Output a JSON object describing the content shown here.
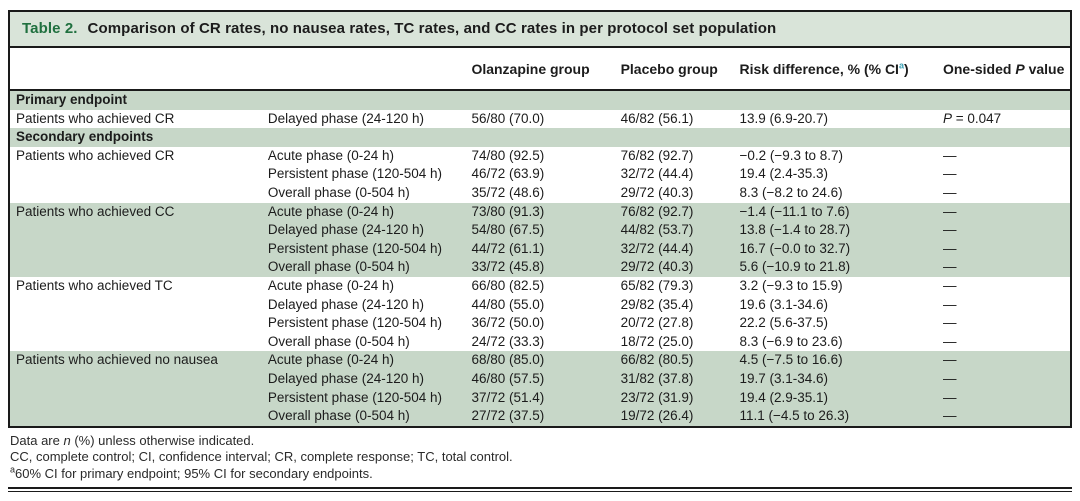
{
  "colors": {
    "title_bar_bg": "#d9e4d9",
    "band_bg": "#c7d7c8",
    "title_green": "#20703f",
    "superscript_teal": "#3ba0b5",
    "border_black": "#1a1a1a"
  },
  "table": {
    "title_label": "Table 2.",
    "title_text": "Comparison of CR rates, no nausea rates, TC rates, and CC rates in per protocol set population",
    "header": {
      "olanzapine": "Olanzapine group",
      "placebo": "Placebo group",
      "risk_prefix": "Risk difference, % (% CI",
      "risk_sup": "a",
      "risk_suffix": ")",
      "p_prefix": "One-sided ",
      "p_italic": "P",
      "p_suffix": " value"
    },
    "rows": [
      {
        "type": "section",
        "label": "Primary endpoint",
        "shaded": true
      },
      {
        "type": "data",
        "shaded": false,
        "endpoint": "Patients who achieved CR",
        "phase": "Delayed phase (24-120 h)",
        "olanzapine": "56/80 (70.0)",
        "placebo": "46/82 (56.1)",
        "risk_diff": "13.9 (6.9-20.7)",
        "p_value": "P = 0.047"
      },
      {
        "type": "section",
        "label": "Secondary endpoints",
        "shaded": true
      },
      {
        "type": "data",
        "shaded": false,
        "endpoint": "Patients who achieved CR",
        "phase": "Acute phase (0-24 h)",
        "olanzapine": "74/80 (92.5)",
        "placebo": "76/82 (92.7)",
        "risk_diff": "−0.2 (−9.3 to 8.7)",
        "p_value": "—"
      },
      {
        "type": "data",
        "shaded": false,
        "endpoint": "",
        "phase": "Persistent phase (120-504 h)",
        "olanzapine": "46/72 (63.9)",
        "placebo": "32/72 (44.4)",
        "risk_diff": "19.4 (2.4-35.3)",
        "p_value": "—"
      },
      {
        "type": "data",
        "shaded": false,
        "endpoint": "",
        "phase": "Overall phase (0-504 h)",
        "olanzapine": "35/72 (48.6)",
        "placebo": "29/72 (40.3)",
        "risk_diff": "8.3 (−8.2 to 24.6)",
        "p_value": "—"
      },
      {
        "type": "data",
        "shaded": true,
        "endpoint": "Patients who achieved CC",
        "phase": "Acute phase (0-24 h)",
        "olanzapine": "73/80 (91.3)",
        "placebo": "76/82 (92.7)",
        "risk_diff": "−1.4 (−11.1 to 7.6)",
        "p_value": "—"
      },
      {
        "type": "data",
        "shaded": true,
        "endpoint": "",
        "phase": "Delayed phase (24-120 h)",
        "olanzapine": "54/80 (67.5)",
        "placebo": "44/82 (53.7)",
        "risk_diff": "13.8 (−1.4 to 28.7)",
        "p_value": "—"
      },
      {
        "type": "data",
        "shaded": true,
        "endpoint": "",
        "phase": "Persistent phase (120-504 h)",
        "olanzapine": "44/72 (61.1)",
        "placebo": "32/72 (44.4)",
        "risk_diff": "16.7 (−0.0 to 32.7)",
        "p_value": "—"
      },
      {
        "type": "data",
        "shaded": true,
        "endpoint": "",
        "phase": "Overall phase (0-504 h)",
        "olanzapine": "33/72 (45.8)",
        "placebo": "29/72 (40.3)",
        "risk_diff": "5.6 (−10.9 to 21.8)",
        "p_value": "—"
      },
      {
        "type": "data",
        "shaded": false,
        "endpoint": "Patients who achieved TC",
        "phase": "Acute phase (0-24 h)",
        "olanzapine": "66/80 (82.5)",
        "placebo": "65/82 (79.3)",
        "risk_diff": "3.2 (−9.3 to 15.9)",
        "p_value": "—"
      },
      {
        "type": "data",
        "shaded": false,
        "endpoint": "",
        "phase": "Delayed phase (24-120 h)",
        "olanzapine": "44/80 (55.0)",
        "placebo": "29/82 (35.4)",
        "risk_diff": "19.6 (3.1-34.6)",
        "p_value": "—"
      },
      {
        "type": "data",
        "shaded": false,
        "endpoint": "",
        "phase": "Persistent phase (120-504 h)",
        "olanzapine": "36/72 (50.0)",
        "placebo": "20/72 (27.8)",
        "risk_diff": "22.2 (5.6-37.5)",
        "p_value": "—"
      },
      {
        "type": "data",
        "shaded": false,
        "endpoint": "",
        "phase": "Overall phase (0-504 h)",
        "olanzapine": "24/72 (33.3)",
        "placebo": "18/72 (25.0)",
        "risk_diff": "8.3 (−6.9 to 23.6)",
        "p_value": "—"
      },
      {
        "type": "data",
        "shaded": true,
        "endpoint": "Patients who achieved no nausea",
        "phase": "Acute phase (0-24 h)",
        "olanzapine": "68/80 (85.0)",
        "placebo": "66/82 (80.5)",
        "risk_diff": "4.5 (−7.5 to 16.6)",
        "p_value": "—"
      },
      {
        "type": "data",
        "shaded": true,
        "endpoint": "",
        "phase": "Delayed phase (24-120 h)",
        "olanzapine": "46/80 (57.5)",
        "placebo": "31/82 (37.8)",
        "risk_diff": "19.7 (3.1-34.6)",
        "p_value": "—"
      },
      {
        "type": "data",
        "shaded": true,
        "endpoint": "",
        "phase": "Persistent phase (120-504 h)",
        "olanzapine": "37/72 (51.4)",
        "placebo": "23/72 (31.9)",
        "risk_diff": "19.4 (2.9-35.1)",
        "p_value": "—"
      },
      {
        "type": "data",
        "shaded": true,
        "endpoint": "",
        "phase": "Overall phase (0-504 h)",
        "olanzapine": "27/72 (37.5)",
        "placebo": "19/72 (26.4)",
        "risk_diff": "11.1 (−4.5 to 26.3)",
        "p_value": "—"
      }
    ]
  },
  "footnotes": {
    "line1_prefix": "Data are ",
    "line1_italic": "n",
    "line1_suffix": " (%) unless otherwise indicated.",
    "line2": "CC, complete control; CI, confidence interval; CR, complete response; TC, total control.",
    "line3_sup": "a",
    "line3_text": "60% CI for primary endpoint; 95% CI for secondary endpoints."
  }
}
